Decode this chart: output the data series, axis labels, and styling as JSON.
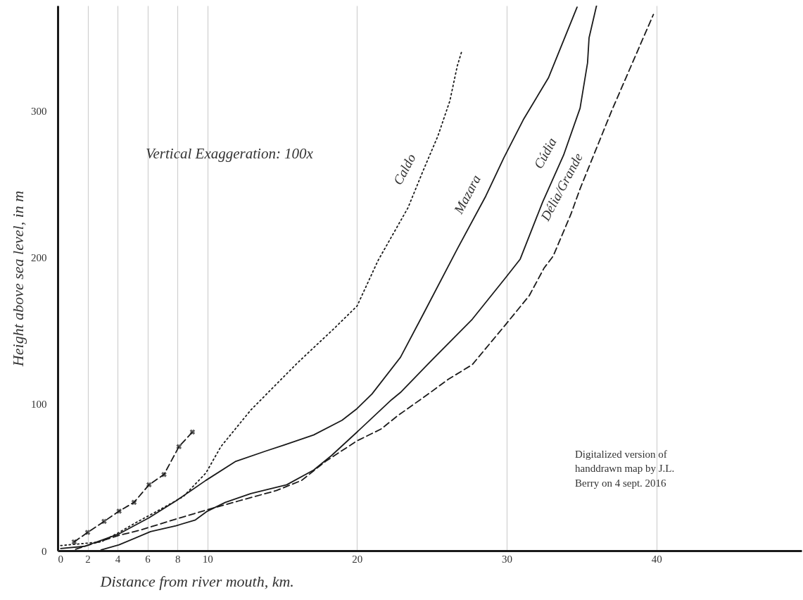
{
  "chart_data": {
    "type": "line",
    "xlabel": "Distance from river mouth, km.",
    "ylabel": "Height above sea level, in m",
    "xlim": [
      0,
      49.7
    ],
    "ylim": [
      0,
      372
    ],
    "xticks": [
      0,
      2,
      4,
      6,
      8,
      10,
      20,
      30,
      40
    ],
    "yticks": [
      0,
      100,
      200,
      300
    ],
    "grid": "x",
    "annotations": [
      "Vertical Exaggeration: 100x",
      "Digitalized version of handdrawn map by J.L. Berry on 4 sept. 2016"
    ],
    "series": [
      {
        "color": "#1a1a1a",
        "line_style": "dashed",
        "marker": "cross",
        "x": [
          1.1,
          2.0,
          3.1,
          4.1,
          5.1,
          6.1,
          7.1,
          8.1,
          9.0
        ],
        "values": [
          6,
          12.5,
          20,
          27,
          33,
          45,
          52,
          71,
          81
        ]
      },
      {
        "name": "Caldo",
        "color": "#1a1a1a",
        "line_style": "dotted",
        "x": [
          0.2,
          2.9,
          4.1,
          5.2,
          7,
          8.4,
          9.9,
          10.9,
          12.9,
          16,
          18.4,
          20,
          21.4,
          23.4,
          24.4,
          25.4,
          26.2,
          26.7,
          27.0
        ],
        "values": [
          3.5,
          6,
          12.5,
          19,
          29,
          37,
          53,
          71,
          96,
          128,
          151,
          167,
          198,
          234,
          259,
          283,
          307,
          331,
          341
        ]
      },
      {
        "name": "Mazara",
        "color": "#1a1a1a",
        "line_style": "solid",
        "x": [
          0.2,
          1.8,
          4.1,
          6.1,
          7.9,
          8.9,
          9.9,
          11.9,
          13.9,
          15.1,
          17.1,
          19,
          20,
          21,
          22.9,
          24.4,
          26.7,
          28.6,
          29.8,
          31.1,
          32.8,
          34.7
        ],
        "values": [
          1.5,
          3,
          11.5,
          22.5,
          34,
          41,
          48,
          61,
          68,
          72,
          79,
          89,
          97,
          107,
          132,
          161,
          206,
          242,
          268,
          294,
          323,
          371
        ]
      },
      {
        "name": "Cúdia",
        "color": "#1a1a1a",
        "line_style": "solid",
        "x": [
          2.9,
          4.1,
          6.2,
          7.9,
          9.2,
          10,
          11.2,
          12.9,
          15.3,
          17.1,
          18.3,
          20,
          22.3,
          22.9,
          24.7,
          27.7,
          29.9,
          30.9,
          32.4,
          33.8,
          34.9,
          35.4,
          35.5,
          36
        ],
        "values": [
          0.5,
          4,
          13,
          17,
          21,
          27,
          33,
          39,
          45,
          55,
          65,
          81,
          103,
          108,
          127,
          158,
          186,
          199,
          238,
          270,
          302,
          333,
          350,
          372
        ]
      },
      {
        "name": "Délia/Grande",
        "color": "#1a1a1a",
        "line_style": "dashed",
        "x": [
          1.2,
          4.1,
          5.5,
          7.9,
          10,
          12.1,
          14.6,
          16.3,
          17.9,
          20,
          21.6,
          22.7,
          24.9,
          26.1,
          27.7,
          29.9,
          31.5,
          32.5,
          33.1,
          34.3,
          34.9,
          37.0,
          39.8
        ],
        "values": [
          1,
          10.5,
          14,
          21.6,
          28,
          34,
          41,
          48,
          61,
          75,
          83,
          92,
          108,
          117,
          127,
          154,
          174,
          193,
          201,
          230,
          247,
          300,
          366
        ]
      }
    ]
  }
}
